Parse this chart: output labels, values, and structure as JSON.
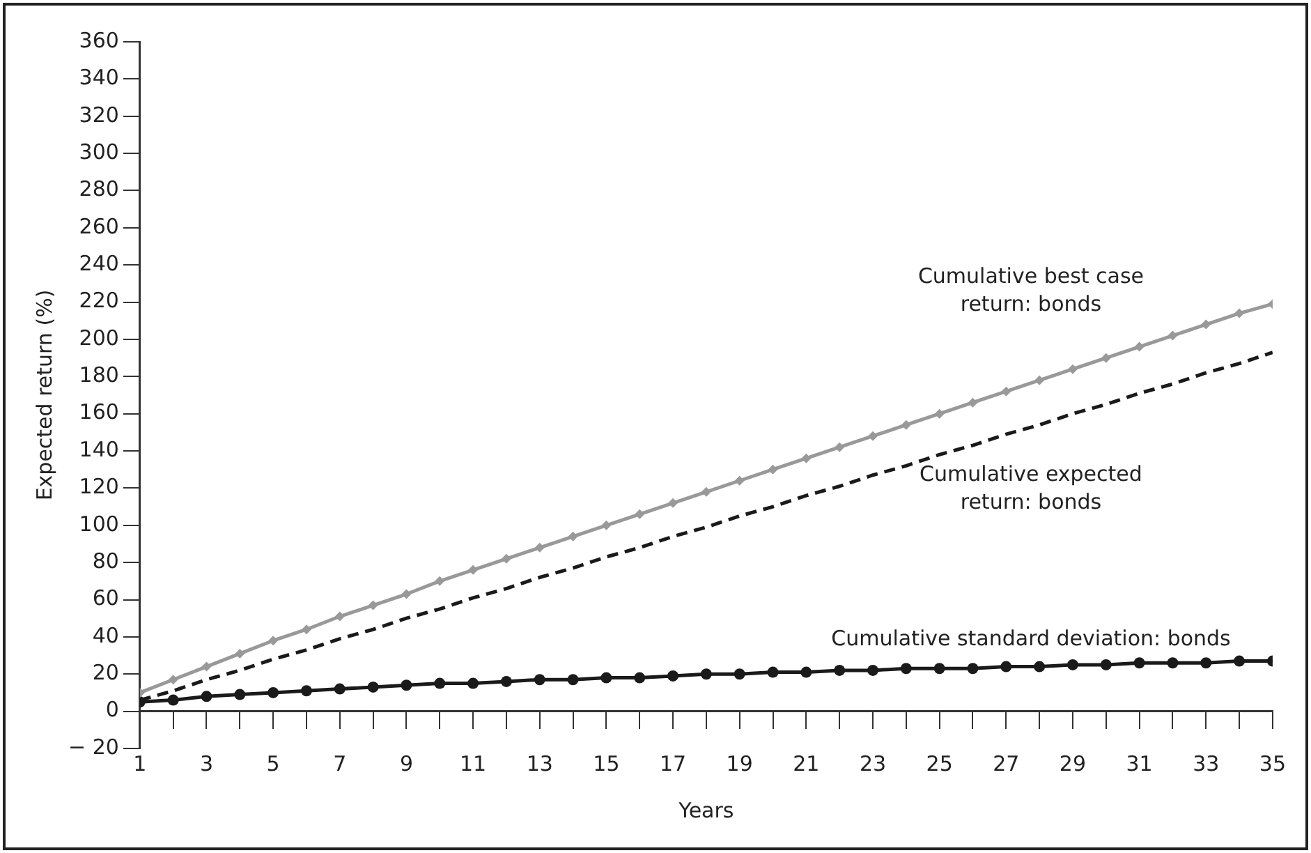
{
  "chart_data": {
    "type": "line",
    "xlabel": "Years",
    "ylabel": "Expected return (%)",
    "x": [
      1,
      2,
      3,
      4,
      5,
      6,
      7,
      8,
      9,
      10,
      11,
      12,
      13,
      14,
      15,
      16,
      17,
      18,
      19,
      20,
      21,
      22,
      23,
      24,
      25,
      26,
      27,
      28,
      29,
      30,
      31,
      32,
      33,
      34,
      35
    ],
    "xlim": [
      1,
      35
    ],
    "xticks": [
      1,
      {
        "value": 2,
        "label": null
      },
      3,
      {
        "value": 4,
        "label": null
      },
      5,
      {
        "value": 6,
        "label": null
      },
      7,
      {
        "value": 8,
        "label": null
      },
      9,
      {
        "value": 10,
        "label": null
      },
      11,
      {
        "value": 12,
        "label": null
      },
      13,
      {
        "value": 14,
        "label": null
      },
      15,
      {
        "value": 16,
        "label": null
      },
      17,
      {
        "value": 18,
        "label": null
      },
      19,
      {
        "value": 20,
        "label": null
      },
      21,
      {
        "value": 22,
        "label": null
      },
      23,
      {
        "value": 24,
        "label": null
      },
      25,
      {
        "value": 26,
        "label": null
      },
      27,
      {
        "value": 28,
        "label": null
      },
      29,
      {
        "value": 30,
        "label": null
      },
      31,
      {
        "value": 32,
        "label": null
      },
      33,
      {
        "value": 34,
        "label": null
      },
      35
    ],
    "ylim": [
      -20,
      360
    ],
    "yticks": [
      {
        "value": -20,
        "label": "− 20"
      },
      0,
      20,
      40,
      60,
      80,
      100,
      120,
      140,
      160,
      180,
      200,
      220,
      240,
      260,
      280,
      300,
      320,
      340,
      360
    ],
    "grid": false,
    "legend": false,
    "series": [
      {
        "name": "Cumulative best case return: bonds",
        "color": "#999999",
        "marker": "diamond",
        "line_style": "solid",
        "values": [
          10,
          17,
          24,
          31,
          38,
          44,
          51,
          57,
          63,
          70,
          76,
          82,
          88,
          94,
          100,
          106,
          112,
          118,
          124,
          130,
          136,
          142,
          148,
          154,
          160,
          166,
          172,
          178,
          184,
          190,
          196,
          202,
          208,
          214,
          219
        ]
      },
      {
        "name": "Cumulative expected return: bonds",
        "color": "#1a1a1a",
        "marker": "none",
        "line_style": "dashed",
        "values": [
          6,
          11,
          17,
          22,
          28,
          33,
          39,
          44,
          50,
          55,
          61,
          66,
          72,
          77,
          83,
          88,
          94,
          99,
          105,
          110,
          116,
          121,
          127,
          132,
          138,
          143,
          149,
          154,
          160,
          165,
          171,
          176,
          182,
          187,
          193
        ]
      },
      {
        "name": "Cumulative standard deviation: bonds",
        "color": "#1a1a1a",
        "marker": "circle",
        "line_style": "solid",
        "values": [
          5,
          6,
          8,
          9,
          10,
          11,
          12,
          13,
          14,
          15,
          15,
          16,
          17,
          17,
          18,
          18,
          19,
          20,
          20,
          21,
          21,
          22,
          22,
          23,
          23,
          23,
          24,
          24,
          25,
          25,
          26,
          26,
          26,
          27,
          27
        ]
      }
    ]
  }
}
